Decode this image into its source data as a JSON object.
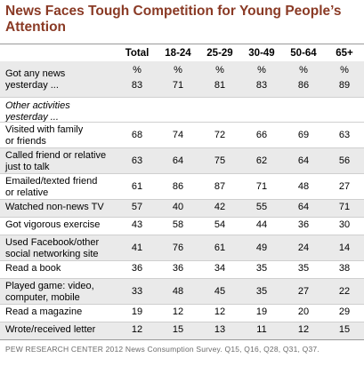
{
  "chart_data": {
    "type": "table",
    "title": "News Faces Tough Competition for Young People’s Attention",
    "columns": [
      "Total",
      "18-24",
      "25-29",
      "30-49",
      "50-64",
      "65+"
    ],
    "unit_row": [
      "%",
      "%",
      "%",
      "%",
      "%",
      "%"
    ],
    "top_row": {
      "label_lines": [
        "Got any news",
        "yesterday ..."
      ],
      "values": [
        83,
        71,
        81,
        83,
        86,
        89
      ]
    },
    "section_label_lines": [
      "Other activities",
      "yesterday ..."
    ],
    "rows": [
      {
        "label_lines": [
          "Visited with family",
          "or friends"
        ],
        "values": [
          68,
          74,
          72,
          66,
          69,
          63
        ]
      },
      {
        "label_lines": [
          "Called friend or relative",
          "just to talk"
        ],
        "values": [
          63,
          64,
          75,
          62,
          64,
          56
        ]
      },
      {
        "label_lines": [
          "Emailed/texted friend",
          "or relative"
        ],
        "values": [
          61,
          86,
          87,
          71,
          48,
          27
        ]
      },
      {
        "label_lines": [
          "Watched non-news TV"
        ],
        "values": [
          57,
          40,
          42,
          55,
          64,
          71
        ]
      },
      {
        "label_lines": [
          "Got vigorous exercise"
        ],
        "values": [
          43,
          58,
          54,
          44,
          36,
          30
        ]
      },
      {
        "label_lines": [
          "Used Facebook/other",
          "social networking site"
        ],
        "values": [
          41,
          76,
          61,
          49,
          24,
          14
        ]
      },
      {
        "label_lines": [
          "Read a book"
        ],
        "values": [
          36,
          36,
          34,
          35,
          35,
          38
        ]
      },
      {
        "label_lines": [
          "Played game: video,",
          "computer, mobile"
        ],
        "values": [
          33,
          48,
          45,
          35,
          27,
          22
        ]
      },
      {
        "label_lines": [
          "Read a magazine"
        ],
        "values": [
          19,
          12,
          12,
          19,
          20,
          29
        ]
      },
      {
        "label_lines": [
          "Wrote/received letter"
        ],
        "values": [
          12,
          15,
          13,
          11,
          12,
          15
        ]
      }
    ],
    "source": "PEW RESEARCH CENTER 2012 News Consumption Survey. Q15, Q16, Q28, Q31, Q37."
  },
  "colors": {
    "title": "#8a3a25",
    "shade": "#eaeaea",
    "rule": "#cfcfcf"
  }
}
